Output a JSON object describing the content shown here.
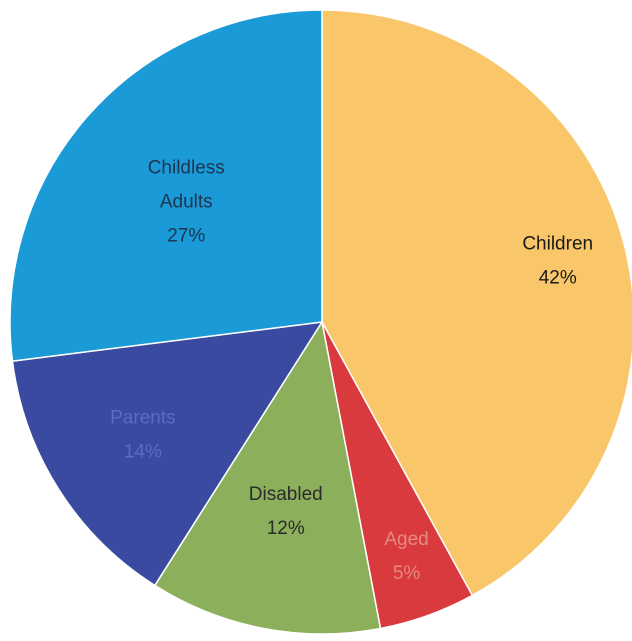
{
  "chart_data": {
    "type": "pie",
    "start_angle_deg": 0,
    "direction": "clockwise",
    "slices": [
      {
        "label": "Children",
        "value": 42,
        "value_label": "42%",
        "color": "#F9C66A",
        "text_color": "#1a1a1a"
      },
      {
        "label": "Aged",
        "value": 5,
        "value_label": "5%",
        "color": "#D93A3E",
        "text_color": "#E58A7E"
      },
      {
        "label": "Disabled",
        "value": 12,
        "value_label": "12%",
        "color": "#8CAF5C",
        "text_color": "#2b2b2b"
      },
      {
        "label": "Parents",
        "value": 14,
        "value_label": "14%",
        "color": "#3A4AA0",
        "text_color": "#5A6BC0"
      },
      {
        "label": "Childless Adults",
        "label_lines": [
          "Childless",
          "Adults"
        ],
        "value": 27,
        "value_label": "27%",
        "color": "#1A9AD6",
        "text_color": "#1e3550"
      }
    ]
  }
}
